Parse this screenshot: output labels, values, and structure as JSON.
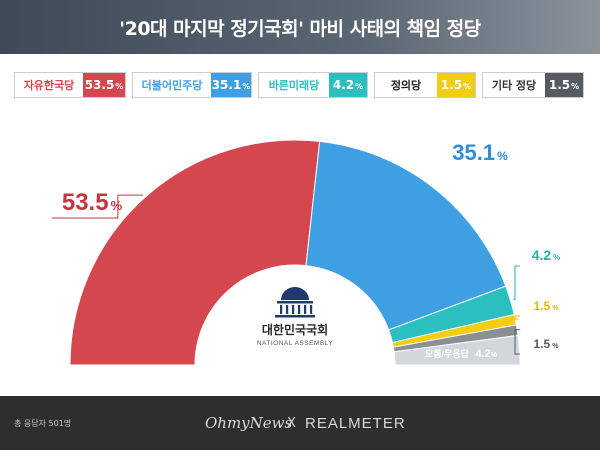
{
  "header": {
    "title": "'20대 마지막 정기국회' 마비 사태의 책임 정당"
  },
  "legend": [
    {
      "name": "자유한국당",
      "value": "53.5",
      "unit": "%",
      "color": "#d4474f"
    },
    {
      "name": "더불어민주당",
      "value": "35.1",
      "unit": "%",
      "color": "#3f9fe3"
    },
    {
      "name": "바른미래당",
      "value": "4.2",
      "unit": "%",
      "color": "#2cbfbf"
    },
    {
      "name": "정의당",
      "value": "1.5",
      "unit": "%",
      "color": "#f3cc14"
    },
    {
      "name": "기타 정당",
      "value": "1.5",
      "unit": "%",
      "color": "#555b61"
    }
  ],
  "chart_data": {
    "type": "pie",
    "title": "'20대 마지막 정기국회' 마비 사태의 책임 정당",
    "categories": [
      "자유한국당",
      "더불어민주당",
      "바른미래당",
      "정의당",
      "기타 정당",
      "모름/무응답"
    ],
    "values": [
      53.5,
      35.1,
      4.2,
      1.5,
      1.5,
      4.2
    ],
    "labels": [
      "53.5",
      "35.1",
      "4.2",
      "1.5",
      "1.5",
      "4.2"
    ],
    "unit": "%",
    "colors": [
      "#d4474f",
      "#3f9fe3",
      "#2cbfbf",
      "#f3cc14",
      "#8a8f94",
      "#d3d6da"
    ],
    "label_colors": [
      "#c6353e",
      "#2e8fd6",
      "#1fb3b3",
      "#e6b800",
      "#555b61",
      "#ffffff"
    ],
    "no_answer_label": "모름/무응답",
    "center_logo": {
      "name": "대한민국국회",
      "sub": "NATIONAL ASSEMBLY"
    },
    "legend": "top"
  },
  "footer": {
    "respondents": "총 응답자 501명",
    "brand_left": "OhmyNews",
    "brand_sep": "X",
    "brand_right": "REALMETER"
  }
}
